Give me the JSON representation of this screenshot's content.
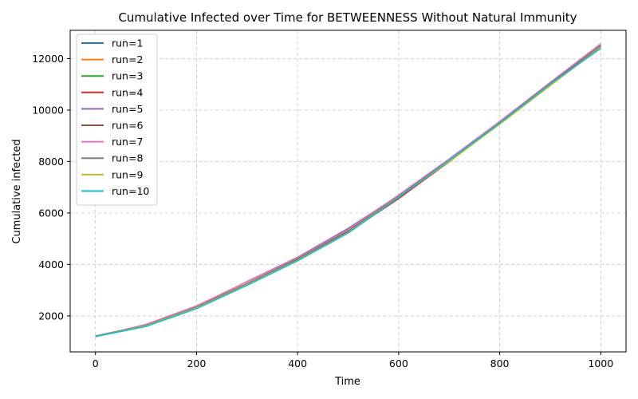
{
  "chart_data": {
    "type": "line",
    "title": "Cumulative Infected over Time for BETWEENNESS Without Natural Immunity",
    "xlabel": "Time",
    "ylabel": "Cumulative infected",
    "xlim": [
      -50,
      1050
    ],
    "ylim": [
      600,
      13100
    ],
    "xticks": [
      0,
      200,
      400,
      600,
      800,
      1000
    ],
    "yticks": [
      2000,
      4000,
      6000,
      8000,
      10000,
      12000
    ],
    "grid": true,
    "legend_position": "top-left",
    "x": [
      0,
      100,
      200,
      300,
      400,
      500,
      600,
      700,
      800,
      900,
      1000
    ],
    "series": [
      {
        "name": "run=1",
        "color": "#1f77b4",
        "values": [
          1210,
          1620,
          2330,
          3250,
          4230,
          5310,
          6680,
          8070,
          9520,
          11020,
          12480
        ]
      },
      {
        "name": "run=2",
        "color": "#ff7f0e",
        "values": [
          1200,
          1660,
          2370,
          3260,
          4250,
          5300,
          6600,
          8000,
          9480,
          11000,
          12520
        ]
      },
      {
        "name": "run=3",
        "color": "#2ca02c",
        "values": [
          1210,
          1600,
          2300,
          3200,
          4150,
          5230,
          6600,
          8040,
          9480,
          10990,
          12450
        ]
      },
      {
        "name": "run=4",
        "color": "#d62728",
        "values": [
          1200,
          1610,
          2320,
          3210,
          4180,
          5250,
          6560,
          7990,
          9470,
          11000,
          12500
        ]
      },
      {
        "name": "run=5",
        "color": "#9467bd",
        "values": [
          1220,
          1640,
          2360,
          3340,
          4280,
          5400,
          6680,
          8090,
          9520,
          11050,
          12550
        ]
      },
      {
        "name": "run=6",
        "color": "#8c564b",
        "values": [
          1210,
          1620,
          2330,
          3240,
          4220,
          5290,
          6640,
          8030,
          9500,
          11030,
          12500
        ]
      },
      {
        "name": "run=7",
        "color": "#e377c2",
        "values": [
          1200,
          1670,
          2390,
          3330,
          4260,
          5350,
          6700,
          8100,
          9560,
          11080,
          12580
        ]
      },
      {
        "name": "run=8",
        "color": "#7f7f7f",
        "values": [
          1210,
          1630,
          2340,
          3250,
          4230,
          5310,
          6650,
          8060,
          9510,
          11040,
          12510
        ]
      },
      {
        "name": "run=9",
        "color": "#bcbd22",
        "values": [
          1200,
          1610,
          2310,
          3210,
          4160,
          5240,
          6620,
          8000,
          9450,
          10950,
          12450
        ]
      },
      {
        "name": "run=10",
        "color": "#17becf",
        "values": [
          1200,
          1590,
          2280,
          3190,
          4140,
          5220,
          6610,
          8050,
          9490,
          11010,
          12400
        ]
      }
    ]
  }
}
